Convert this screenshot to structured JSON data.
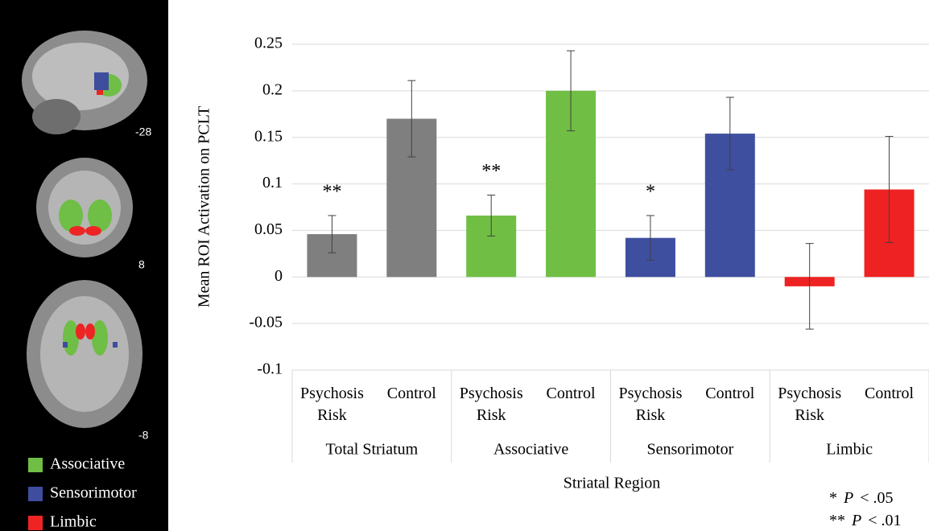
{
  "figure": {
    "slice_labels": [
      "-28",
      "8",
      "-8"
    ],
    "legend": [
      {
        "name": "Associative",
        "color": "#6fbe46"
      },
      {
        "name": "Sensorimotor",
        "color": "#3f4d9e"
      },
      {
        "name": "Limbic",
        "color": "#ee2424"
      }
    ]
  },
  "chart_data": {
    "type": "bar",
    "ylabel": "Mean ROI Activation on PCLT",
    "xlabel": "Striatal Region",
    "groups": [
      "Total Striatum",
      "Associative",
      "Sensorimotor",
      "Limbic"
    ],
    "categories": [
      "Psychosis Risk",
      "Control",
      "Psychosis Risk",
      "Control",
      "Psychosis Risk",
      "Control",
      "Psychosis Risk",
      "Control"
    ],
    "values": [
      0.046,
      0.17,
      0.066,
      0.2,
      0.042,
      0.154,
      -0.01,
      0.094
    ],
    "errors": [
      0.02,
      0.041,
      0.022,
      0.043,
      0.024,
      0.039,
      0.046,
      0.057
    ],
    "colors": [
      "#7f7f7f",
      "#7f7f7f",
      "#70bf44",
      "#70bf44",
      "#3f4fa0",
      "#3f4fa0",
      "#ee2222",
      "#ee2222"
    ],
    "annotations": [
      "**",
      null,
      "**",
      null,
      "*",
      null,
      null,
      null
    ],
    "ylim": [
      -0.1,
      0.25
    ],
    "yticks": [
      -0.1,
      -0.05,
      0,
      0.05,
      0.1,
      0.15,
      0.2,
      0.25
    ],
    "grid": true,
    "footnotes": [
      {
        "marker": "*",
        "p": "P",
        "text": "< .05"
      },
      {
        "marker": "**",
        "p": "P",
        "text": "< .01"
      }
    ]
  }
}
